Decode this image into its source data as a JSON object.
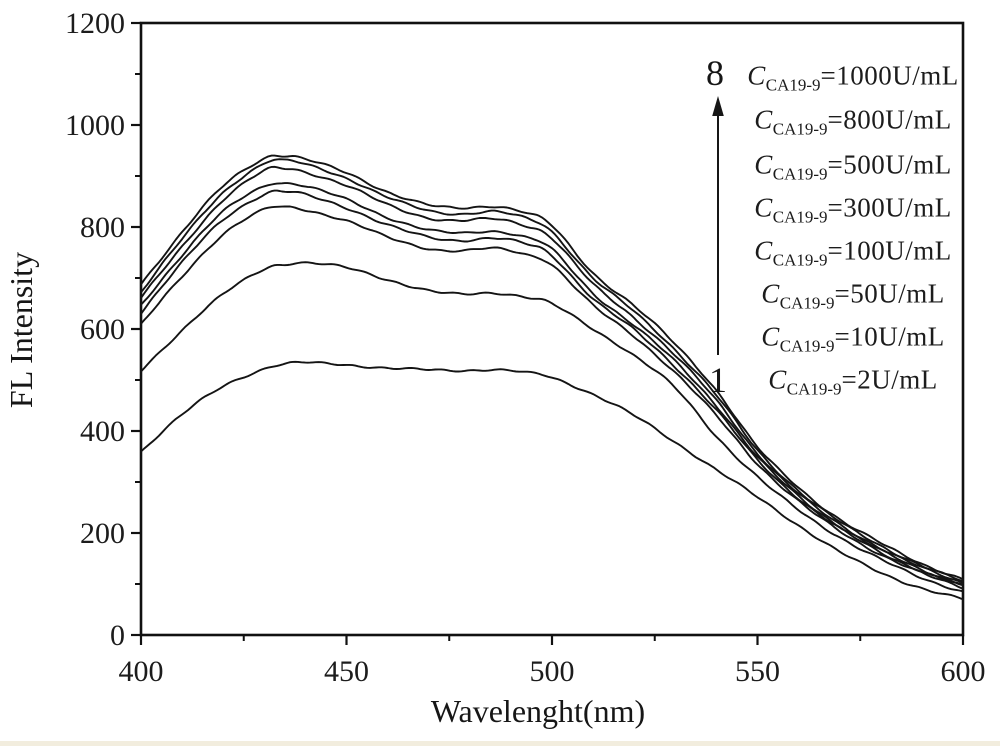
{
  "figure": {
    "background": "#ffffff",
    "curve_color": "#141414",
    "axis_color": "#111111",
    "bottom_edge_tint": "#f2edde"
  },
  "chart_data": {
    "type": "line",
    "title": "",
    "xlabel": "Wavelenght(nm)",
    "ylabel": "FL Intensity",
    "xlim": [
      400,
      600
    ],
    "ylim": [
      0,
      1200
    ],
    "x_major_ticks": [
      400,
      450,
      500,
      550,
      600
    ],
    "x_minor_ticks": [
      425,
      475,
      525,
      575
    ],
    "y_major_ticks": [
      0,
      200,
      400,
      600,
      800,
      1000,
      1200
    ],
    "y_minor_ticks": [
      100,
      300,
      500,
      700,
      900,
      1100
    ],
    "grid": false,
    "legend_position": "upper-right",
    "x": [
      400,
      410,
      420,
      430,
      435,
      440,
      450,
      460,
      470,
      478,
      486,
      494,
      500,
      510,
      520,
      530,
      540,
      550,
      560,
      570,
      580,
      590,
      600
    ],
    "series": [
      {
        "curve_index": 1,
        "name": "CA19-9 = 2 U/mL",
        "concentration": "2U/mL",
        "values": [
          360,
          432,
          488,
          522,
          531,
          534,
          530,
          523,
          520,
          519,
          520,
          514,
          505,
          472,
          430,
          378,
          324,
          270,
          215,
          163,
          122,
          92,
          70
        ]
      },
      {
        "curve_index": 2,
        "name": "CA19-9 = 10 U/mL",
        "concentration": "10U/mL",
        "values": [
          518,
          598,
          668,
          718,
          727,
          730,
          720,
          697,
          675,
          668,
          671,
          662,
          649,
          600,
          548,
          484,
          390,
          310,
          245,
          192,
          148,
          112,
          85
        ]
      },
      {
        "curve_index": 3,
        "name": "CA19-9 = 50 U/mL",
        "concentration": "50U/mL",
        "values": [
          608,
          703,
          786,
          834,
          839,
          834,
          812,
          780,
          758,
          753,
          758,
          746,
          726,
          646,
          586,
          514,
          430,
          336,
          262,
          204,
          158,
          121,
          93
        ]
      },
      {
        "curve_index": 4,
        "name": "CA19-9 = 100 U/mL",
        "concentration": "100U/mL",
        "values": [
          632,
          730,
          815,
          864,
          869,
          863,
          838,
          804,
          780,
          774,
          778,
          766,
          744,
          660,
          598,
          526,
          441,
          343,
          268,
          209,
          162,
          125,
          96
        ]
      },
      {
        "curve_index": 5,
        "name": "CA19-9 = 300 U/mL",
        "concentration": "300U/mL",
        "values": [
          647,
          745,
          830,
          881,
          886,
          880,
          854,
          819,
          794,
          788,
          792,
          779,
          756,
          670,
          607,
          536,
          450,
          349,
          272,
          213,
          166,
          128,
          99
        ]
      },
      {
        "curve_index": 6,
        "name": "CA19-9 = 500 U/mL",
        "concentration": "500U/mL",
        "values": [
          660,
          762,
          853,
          910,
          915,
          908,
          881,
          844,
          818,
          812,
          816,
          802,
          778,
          688,
          622,
          548,
          460,
          356,
          277,
          217,
          170,
          132,
          102
        ]
      },
      {
        "curve_index": 7,
        "name": "CA19-9 = 800 U/mL",
        "concentration": "800U/mL",
        "values": [
          673,
          776,
          868,
          925,
          930,
          923,
          896,
          858,
          832,
          826,
          830,
          816,
          791,
          700,
          634,
          559,
          470,
          362,
          283,
          222,
          175,
          136,
          105
        ]
      },
      {
        "curve_index": 8,
        "name": "CA19-9 = 1000 U/mL",
        "concentration": "1000U/mL",
        "values": [
          688,
          790,
          880,
          935,
          940,
          933,
          906,
          869,
          843,
          837,
          841,
          827,
          802,
          710,
          645,
          570,
          480,
          368,
          289,
          227,
          180,
          140,
          109
        ]
      }
    ],
    "annotations": {
      "arrow_top_label": "8",
      "arrow_bottom_label": "1",
      "arrow_direction": "up"
    }
  },
  "legend": {
    "entries": [
      {
        "symbol": "C",
        "subscript": "CA19-9",
        "value": "=1000U/mL"
      },
      {
        "symbol": "C",
        "subscript": "CA19-9",
        "value": "=800U/mL"
      },
      {
        "symbol": "C",
        "subscript": "CA19-9",
        "value": "=500U/mL"
      },
      {
        "symbol": "C",
        "subscript": "CA19-9",
        "value": "=300U/mL"
      },
      {
        "symbol": "C",
        "subscript": "CA19-9",
        "value": "=100U/mL"
      },
      {
        "symbol": "C",
        "subscript": "CA19-9",
        "value": "=50U/mL"
      },
      {
        "symbol": "C",
        "subscript": "CA19-9",
        "value": "=10U/mL"
      },
      {
        "symbol": "C",
        "subscript": "CA19-9",
        "value": "=2U/mL"
      }
    ]
  }
}
